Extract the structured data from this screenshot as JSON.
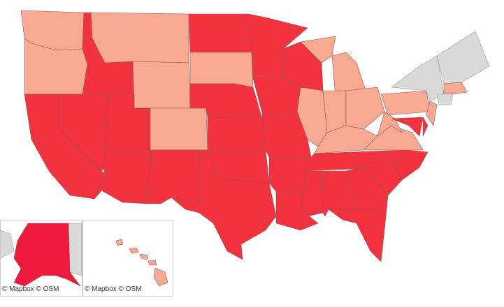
{
  "insets": [
    {
      "attribution": "© Mapbox  © OSM"
    },
    {
      "attribution": "© Mapbox  © OSM"
    }
  ]
}
